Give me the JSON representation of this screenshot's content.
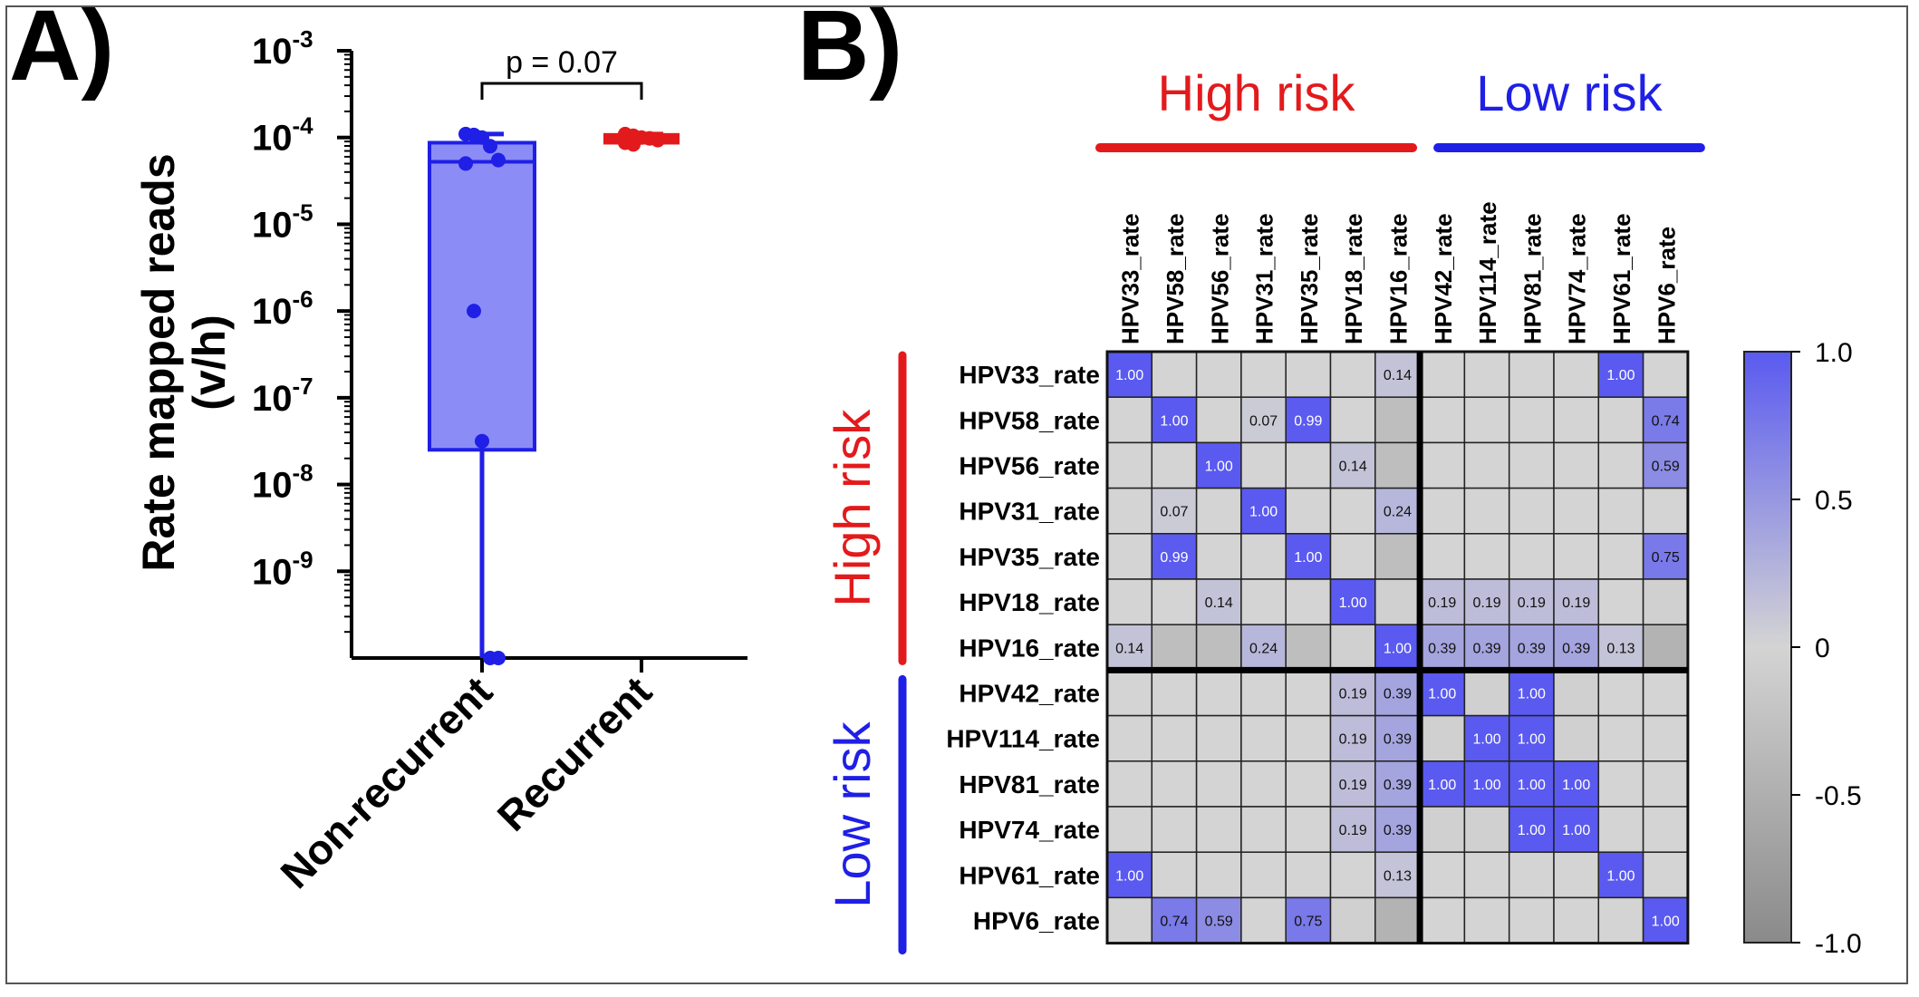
{
  "panel_a": {
    "letter": "A)",
    "ylabel_line1": "Rate mapped reads",
    "ylabel_line2": "(v/h)",
    "pvalue": "p = 0.07",
    "colors": {
      "non_recurrent": "#1f1fe6",
      "non_recurrent_fill": "#8c8cf7",
      "recurrent": "#e31a1c"
    }
  },
  "panel_b": {
    "letter": "B)",
    "top_groups": [
      "High risk",
      "Low risk"
    ],
    "side_groups": [
      "High risk",
      "Low risk"
    ],
    "colors": {
      "high_risk": "#e31a1c",
      "low_risk": "#1f1fe6",
      "positive": "#5a5af0",
      "zero": "#d4d4d4",
      "negative": "#8a8a8a"
    }
  },
  "chart_data": [
    {
      "type": "box",
      "title": "",
      "ylabel": "Rate mapped reads (v/h)",
      "yscale": "log",
      "ytick_labels": [
        {
          "base": "10",
          "exp": "-3"
        },
        {
          "base": "10",
          "exp": "-4"
        },
        {
          "base": "10",
          "exp": "-5"
        },
        {
          "base": "10",
          "exp": "-6"
        },
        {
          "base": "10",
          "exp": "-7"
        },
        {
          "base": "10",
          "exp": "-8"
        },
        {
          "base": "10",
          "exp": "-9"
        }
      ],
      "yexp_range": [
        -10,
        -3
      ],
      "categories": [
        "Non-recurrent",
        "Recurrent"
      ],
      "groups": [
        {
          "name": "Non-recurrent",
          "box_exp": {
            "q1": -7.6,
            "median": -4.28,
            "q3": -4.06,
            "max": -3.96,
            "min": -10
          },
          "points_exp": [
            -3.96,
            -3.97,
            -4.0,
            -4.1,
            -4.26,
            -4.3,
            -6.0,
            -7.5,
            -10,
            -10
          ]
        },
        {
          "name": "Recurrent",
          "box_exp": {
            "q1": -4.06,
            "median": -4.02,
            "q3": -3.97,
            "max": -3.96,
            "min": -4.08
          },
          "points_exp": [
            -3.96,
            -3.98,
            -4.0,
            -4.01,
            -4.03,
            -4.06,
            -4.08
          ]
        }
      ],
      "annotation": "p = 0.07"
    },
    {
      "type": "heatmap",
      "labels": [
        "HPV33_rate",
        "HPV58_rate",
        "HPV56_rate",
        "HPV31_rate",
        "HPV35_rate",
        "HPV18_rate",
        "HPV16_rate",
        "HPV42_rate",
        "HPV114_rate",
        "HPV81_rate",
        "HPV74_rate",
        "HPV61_rate",
        "HPV6_rate"
      ],
      "values": [
        [
          1.0,
          0,
          0,
          0,
          0,
          0,
          0.14,
          0,
          0,
          0,
          0,
          1.0,
          0
        ],
        [
          0,
          1.0,
          0,
          0.07,
          0.99,
          0,
          -0.3,
          0,
          0,
          0,
          0,
          0,
          0.74
        ],
        [
          0,
          0,
          1.0,
          0,
          0,
          0.14,
          -0.3,
          0,
          0,
          0,
          0,
          0,
          0.59
        ],
        [
          0,
          0.07,
          0,
          1.0,
          0,
          0,
          0.24,
          0,
          0,
          0,
          0,
          0,
          0
        ],
        [
          0,
          0.99,
          0,
          0,
          1.0,
          0,
          -0.3,
          0,
          0,
          0,
          0,
          0,
          0.75
        ],
        [
          0,
          0,
          0.14,
          0,
          0,
          1.0,
          -0.05,
          0.19,
          0.19,
          0.19,
          0.19,
          0,
          -0.05
        ],
        [
          0.14,
          -0.3,
          -0.3,
          0.24,
          -0.3,
          -0.05,
          1.0,
          0.39,
          0.39,
          0.39,
          0.39,
          0.13,
          -0.45
        ],
        [
          0,
          0,
          0,
          0,
          0,
          0.19,
          0.39,
          1.0,
          -0.05,
          1.0,
          -0.05,
          0,
          0
        ],
        [
          0,
          0,
          0,
          0,
          0,
          0.19,
          0.39,
          -0.05,
          1.0,
          1.0,
          -0.05,
          0,
          0
        ],
        [
          0,
          0,
          0,
          0,
          0,
          0.19,
          0.39,
          1.0,
          1.0,
          1.0,
          1.0,
          0,
          0
        ],
        [
          0,
          0,
          0,
          0,
          0,
          0.19,
          0.39,
          -0.05,
          -0.05,
          1.0,
          1.0,
          0,
          0
        ],
        [
          1.0,
          0,
          0,
          0,
          0,
          0,
          0.13,
          0,
          0,
          0,
          0,
          1.0,
          0
        ],
        [
          0,
          0.74,
          0.59,
          0,
          0.75,
          -0.05,
          -0.45,
          0,
          0,
          0,
          0,
          0,
          1.0
        ]
      ],
      "cell_labels": [
        [
          "1.00",
          "",
          "",
          "",
          "",
          "",
          "0.14",
          "",
          "",
          "",
          "",
          "1.00",
          ""
        ],
        [
          "",
          "1.00",
          "",
          "0.07",
          "0.99",
          "",
          "",
          "",
          "",
          "",
          "",
          "",
          "0.74"
        ],
        [
          "",
          "",
          "1.00",
          "",
          "",
          "0.14",
          "",
          "",
          "",
          "",
          "",
          "",
          "0.59"
        ],
        [
          "",
          "0.07",
          "",
          "1.00",
          "",
          "",
          "0.24",
          "",
          "",
          "",
          "",
          "",
          ""
        ],
        [
          "",
          "0.99",
          "",
          "",
          "1.00",
          "",
          "",
          "",
          "",
          "",
          "",
          "",
          "0.75"
        ],
        [
          "",
          "",
          "0.14",
          "",
          "",
          "1.00",
          "",
          "0.19",
          "0.19",
          "0.19",
          "0.19",
          "",
          ""
        ],
        [
          "0.14",
          "",
          "",
          "0.24",
          "",
          "",
          "1.00",
          "0.39",
          "0.39",
          "0.39",
          "0.39",
          "0.13",
          ""
        ],
        [
          "",
          "",
          "",
          "",
          "",
          "0.19",
          "0.39",
          "1.00",
          "",
          "1.00",
          "",
          "",
          ""
        ],
        [
          "",
          "",
          "",
          "",
          "",
          "0.19",
          "0.39",
          "",
          "1.00",
          "1.00",
          "",
          "",
          ""
        ],
        [
          "",
          "",
          "",
          "",
          "",
          "0.19",
          "0.39",
          "1.00",
          "1.00",
          "1.00",
          "1.00",
          "",
          ""
        ],
        [
          "",
          "",
          "",
          "",
          "",
          "0.19",
          "0.39",
          "",
          "",
          "1.00",
          "1.00",
          "",
          ""
        ],
        [
          "1.00",
          "",
          "",
          "",
          "",
          "",
          "0.13",
          "",
          "",
          "",
          "",
          "1.00",
          ""
        ],
        [
          "",
          "0.74",
          "0.59",
          "",
          "0.75",
          "",
          "",
          "",
          "",
          "",
          "",
          "",
          "1.00"
        ]
      ],
      "group_split_index": 7,
      "colorbar": {
        "ticks": [
          "1.0",
          "0.5",
          "0",
          "-0.5",
          "-1.0"
        ],
        "range": [
          -1.0,
          1.0
        ]
      }
    }
  ]
}
